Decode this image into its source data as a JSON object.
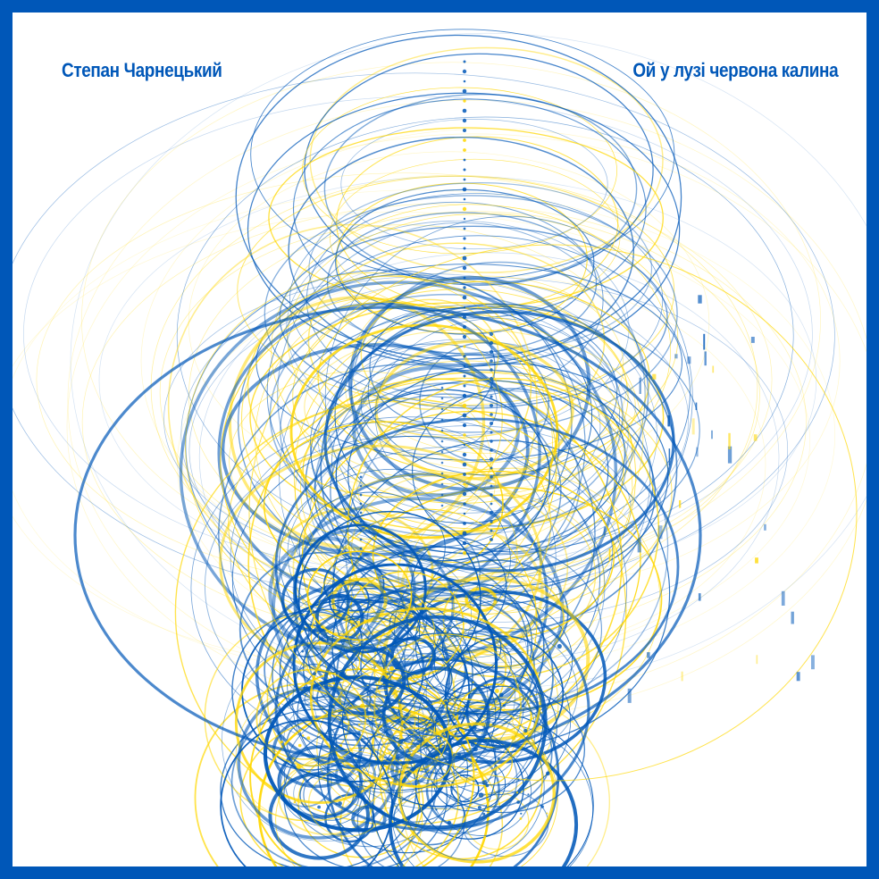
{
  "artist": "Степан Чарнецький",
  "song_title": "Ой у лузі червона калина",
  "colors": {
    "frame": "#0057B8",
    "blue": "#0057B8",
    "yellow": "#FFD700",
    "background": "#ffffff"
  }
}
